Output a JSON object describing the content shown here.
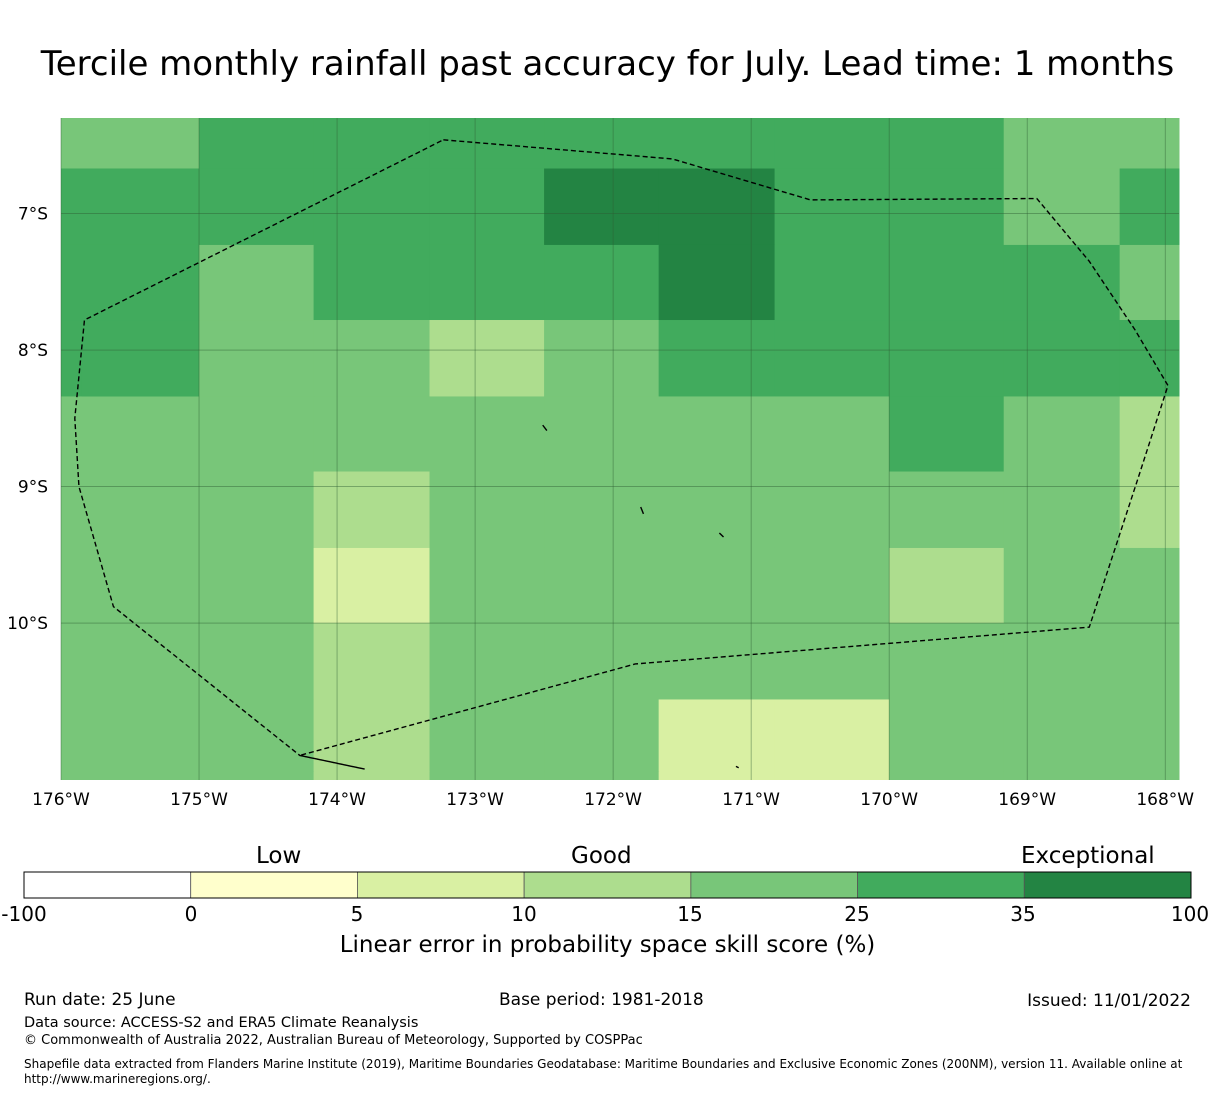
{
  "title": "Tercile monthly rainfall past accuracy for July. Lead time: 1 months",
  "map": {
    "lon_range": [
      -176,
      -167.9
    ],
    "lat_range": [
      -11.15,
      -6.3
    ],
    "lon_ticks": [
      {
        "value": -176,
        "label": "176°W"
      },
      {
        "value": -175,
        "label": "175°W"
      },
      {
        "value": -174,
        "label": "174°W"
      },
      {
        "value": -173,
        "label": "173°W"
      },
      {
        "value": -172,
        "label": "172°W"
      },
      {
        "value": -171,
        "label": "171°W"
      },
      {
        "value": -170,
        "label": "170°W"
      },
      {
        "value": -169,
        "label": "169°W"
      },
      {
        "value": -168,
        "label": "168°W"
      }
    ],
    "lat_ticks": [
      {
        "value": -7,
        "label": "7°S"
      },
      {
        "value": -8,
        "label": "8°S"
      },
      {
        "value": -9,
        "label": "9°S"
      },
      {
        "value": -10,
        "label": "10°S"
      }
    ],
    "grid_lines": true,
    "cell_columns_lon": [
      -176,
      -175,
      -174.17,
      -173.33,
      -172.5,
      -171.67,
      -170.83,
      -170,
      -169.17,
      -168.33,
      -167.9
    ],
    "cell_rows_lat": [
      -6.3,
      -6.67,
      -7.23,
      -7.78,
      -8.34,
      -8.89,
      -9.45,
      -10.0,
      -10.56,
      -11.09
    ],
    "cell_colors": [
      [
        "#78c679",
        "#41ab5d",
        "#41ab5d",
        "#41ab5d",
        "#41ab5d",
        "#41ab5d",
        "#41ab5d",
        "#41ab5d",
        "#78c679",
        "#78c679"
      ],
      [
        "#41ab5d",
        "#41ab5d",
        "#41ab5d",
        "#41ab5d",
        "#238443",
        "#238443",
        "#41ab5d",
        "#41ab5d",
        "#78c679",
        "#41ab5d"
      ],
      [
        "#41ab5d",
        "#78c679",
        "#41ab5d",
        "#41ab5d",
        "#41ab5d",
        "#238443",
        "#41ab5d",
        "#41ab5d",
        "#41ab5d",
        "#78c679"
      ],
      [
        "#41ab5d",
        "#78c679",
        "#78c679",
        "#addd8e",
        "#78c679",
        "#41ab5d",
        "#41ab5d",
        "#41ab5d",
        "#41ab5d",
        "#41ab5d"
      ],
      [
        "#78c679",
        "#78c679",
        "#78c679",
        "#78c679",
        "#78c679",
        "#78c679",
        "#78c679",
        "#41ab5d",
        "#78c679",
        "#addd8e"
      ],
      [
        "#78c679",
        "#78c679",
        "#addd8e",
        "#78c679",
        "#78c679",
        "#78c679",
        "#78c679",
        "#78c679",
        "#78c679",
        "#addd8e"
      ],
      [
        "#78c679",
        "#78c679",
        "#d9f0a3",
        "#78c679",
        "#78c679",
        "#78c679",
        "#78c679",
        "#addd8e",
        "#78c679",
        "#78c679"
      ],
      [
        "#78c679",
        "#78c679",
        "#addd8e",
        "#78c679",
        "#78c679",
        "#78c679",
        "#78c679",
        "#78c679",
        "#78c679",
        "#78c679"
      ],
      [
        "#78c679",
        "#78c679",
        "#addd8e",
        "#78c679",
        "#78c679",
        "#d9f0a3",
        "#d9f0a3",
        "#78c679",
        "#78c679",
        "#78c679"
      ]
    ],
    "extra_cells": [
      {
        "lon0": -175.85,
        "lon1": -175,
        "lat0": -7.78,
        "lat1": -8.34,
        "color": "#41ab5d"
      }
    ],
    "boundary_lonlat": [
      [
        -173.23,
        -6.46
      ],
      [
        -171.57,
        -6.6
      ],
      [
        -170.57,
        -6.9
      ],
      [
        -168.93,
        -6.89
      ],
      [
        -168.55,
        -7.35
      ],
      [
        -168.22,
        -7.85
      ],
      [
        -167.98,
        -8.26
      ],
      [
        -168.2,
        -8.95
      ],
      [
        -168.55,
        -10.03
      ],
      [
        -171.84,
        -10.3
      ],
      [
        -174.27,
        -10.97
      ],
      [
        -173.8,
        -11.07
      ],
      [
        -174.27,
        -10.97
      ],
      [
        -175.62,
        -9.88
      ],
      [
        -175.87,
        -9.0
      ],
      [
        -175.9,
        -8.5
      ],
      [
        -175.83,
        -7.78
      ],
      [
        -173.23,
        -6.46
      ]
    ],
    "islands_lonlat": [
      [
        [
          -172.51,
          -8.55
        ],
        [
          -172.48,
          -8.59
        ]
      ],
      [
        [
          -171.8,
          -9.15
        ],
        [
          -171.78,
          -9.2
        ]
      ],
      [
        [
          -171.23,
          -9.34
        ],
        [
          -171.2,
          -9.37
        ]
      ],
      [
        [
          -171.11,
          -11.05
        ],
        [
          -171.09,
          -11.06
        ]
      ]
    ]
  },
  "colorbar": {
    "words": [
      "Low",
      "Good",
      "Exceptional"
    ],
    "ticks": [
      "-100",
      "0",
      "5",
      "10",
      "15",
      "25",
      "35",
      "100"
    ],
    "colors": [
      "#ffffff",
      "#ffffcc",
      "#d9f0a3",
      "#addd8e",
      "#78c679",
      "#41ab5d",
      "#238443"
    ],
    "label": "Linear error in probability space skill score (%)"
  },
  "footer": {
    "run_date": "Run date: 25 June",
    "base_period": "Base period: 1981-2018",
    "issued": "Issued: 11/01/2022",
    "data_source": "Data source: ACCESS-S2 and ERA5 Climate Reanalysis",
    "copyright": "© Commonwealth of Australia 2022, Australian Bureau of Meteorology, Supported by COSPPac",
    "shapefile_1": "Shapefile data extracted from Flanders Marine Institute (2019), Maritime Boundaries Geodatabase: Maritime Boundaries and Exclusive Economic Zones (200NM), version 11. Available online at",
    "shapefile_2": "http://www.marineregions.org/."
  }
}
